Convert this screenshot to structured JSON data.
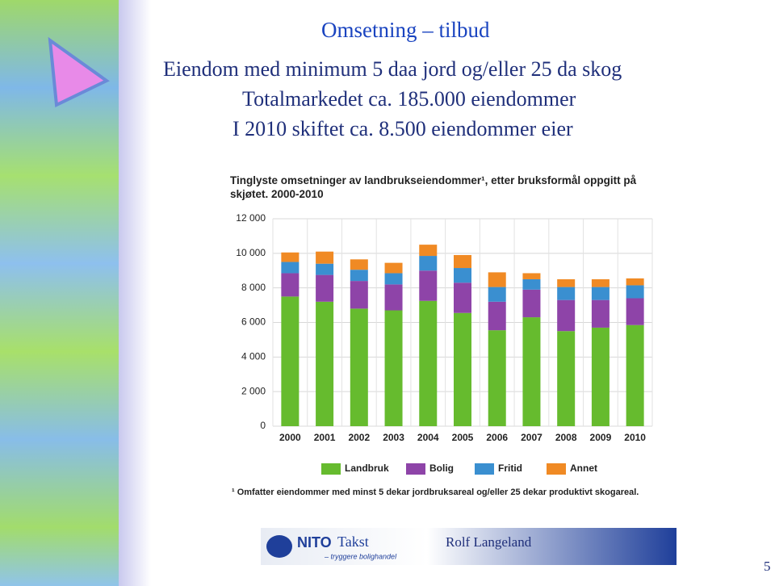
{
  "slide": {
    "title": "Omsetning – tilbud",
    "lines": [
      "Eiendom med minimum 5 daa jord og/eller 25 da skog",
      "Totalmarkedet ca. 185.000 eiendommer",
      "I 2010 skiftet ca. 8.500 eiendommer eier"
    ],
    "logo": "NITO",
    "logo_suffix": "Takst",
    "tagline": "– tryggere bolighandel",
    "author": "Rolf Langeland",
    "page_number": "5"
  },
  "chart_data": {
    "type": "stacked-bar",
    "title": "Tinglyste omsetninger av landbrukseiendommer¹, etter bruksformål oppgitt på skjøtet. 2000-2010",
    "footnote": "¹ Omfatter eiendommer med minst 5 dekar jordbruksareal og/eller 25 dekar produktivt skogareal.",
    "categories": [
      "2000",
      "2001",
      "2002",
      "2003",
      "2004",
      "2005",
      "2006",
      "2007",
      "2008",
      "2009",
      "2010"
    ],
    "series": [
      {
        "name": "Landbruk",
        "color": "#66bb2e",
        "values": [
          7500,
          7200,
          6800,
          6700,
          7250,
          6550,
          5550,
          6300,
          5500,
          5700,
          5850
        ]
      },
      {
        "name": "Bolig",
        "color": "#8e44a8",
        "values": [
          1350,
          1550,
          1600,
          1500,
          1750,
          1750,
          1650,
          1600,
          1800,
          1600,
          1550
        ]
      },
      {
        "name": "Fritid",
        "color": "#3a8fd0",
        "values": [
          650,
          650,
          650,
          650,
          850,
          850,
          850,
          600,
          750,
          750,
          750
        ]
      },
      {
        "name": "Annet",
        "color": "#f08a24",
        "values": [
          550,
          700,
          600,
          600,
          650,
          750,
          850,
          350,
          450,
          450,
          400
        ]
      }
    ],
    "ylim": [
      0,
      12000
    ],
    "yticks": [
      0,
      {
        "value": 2000,
        "label": "2 000"
      },
      {
        "value": 4000,
        "label": "4 000"
      },
      {
        "value": 6000,
        "label": "6 000"
      },
      {
        "value": 8000,
        "label": "8 000"
      },
      {
        "value": 10000,
        "label": "10 000"
      },
      {
        "value": 12000,
        "label": "12 000"
      }
    ],
    "grid": true
  }
}
